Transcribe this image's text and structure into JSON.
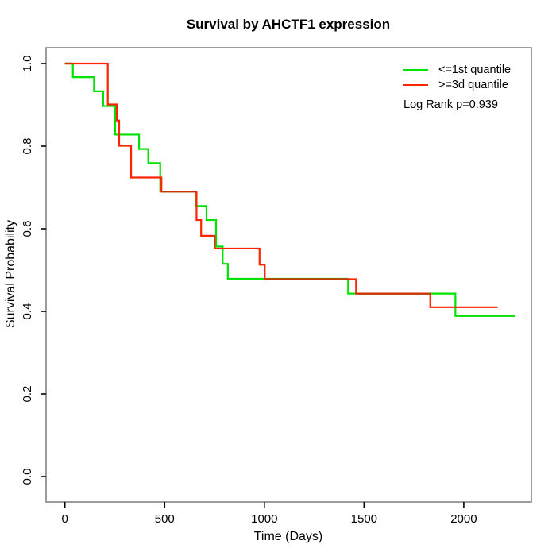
{
  "title": "Survival by AHCTF1 expression",
  "legend": {
    "items": [
      {
        "label": "<=1st quantile",
        "color": "#00e300"
      },
      {
        "label": ">=3d quantile",
        "color": "#ff2400"
      }
    ],
    "note": "Log Rank p=0.939"
  },
  "chart_data": {
    "type": "line",
    "subtype": "kaplan-meier-step",
    "title": "Survival by AHCTF1 expression",
    "xlabel": "Time (Days)",
    "ylabel": "Survival Probability",
    "xlim": [
      0,
      2256
    ],
    "ylim": [
      0.0,
      1.0
    ],
    "grid": false,
    "legend_position": "top-right-inside",
    "annotation": "Log Rank p=0.939",
    "x_ticks": [
      0,
      500,
      1000,
      1500,
      2000
    ],
    "x_tick_labels": [
      "0",
      "500",
      "1000",
      "1500",
      "2000"
    ],
    "y_ticks": [
      0.0,
      0.2,
      0.4,
      0.6,
      0.8,
      1.0
    ],
    "y_tick_labels": [
      "0.0",
      "0.2",
      "0.4",
      "0.6",
      "0.8",
      "1.0"
    ],
    "series": [
      {
        "name": "<=1st quantile",
        "color": "#00e300",
        "end_time": 2256,
        "steps": [
          [
            0,
            1.0
          ],
          [
            40,
            0.967
          ],
          [
            146,
            0.933
          ],
          [
            192,
            0.897
          ],
          [
            252,
            0.828
          ],
          [
            372,
            0.793
          ],
          [
            418,
            0.759
          ],
          [
            478,
            0.69
          ],
          [
            657,
            0.655
          ],
          [
            710,
            0.621
          ],
          [
            758,
            0.557
          ],
          [
            791,
            0.515
          ],
          [
            817,
            0.479
          ],
          [
            1420,
            0.443
          ],
          [
            1958,
            0.389
          ]
        ]
      },
      {
        "name": ">=3d quantile",
        "color": "#ff2400",
        "end_time": 2170,
        "steps": [
          [
            0,
            1.0
          ],
          [
            215,
            0.901
          ],
          [
            260,
            0.862
          ],
          [
            272,
            0.801
          ],
          [
            332,
            0.724
          ],
          [
            484,
            0.69
          ],
          [
            660,
            0.621
          ],
          [
            683,
            0.583
          ],
          [
            751,
            0.552
          ],
          [
            976,
            0.513
          ],
          [
            1002,
            0.478
          ],
          [
            1460,
            0.443
          ],
          [
            1832,
            0.41
          ]
        ]
      }
    ],
    "overlap_segments": [
      {
        "p": 1.0,
        "t0": 0,
        "t1": 40
      },
      {
        "p": 0.69,
        "t0": 484,
        "t1": 657
      },
      {
        "p": 0.478,
        "t0": 1002,
        "t1": 1420
      },
      {
        "p": 0.443,
        "t0": 1460,
        "t1": 1832
      }
    ],
    "overlap_color": "#cc3300",
    "box_color": "#848484",
    "tick_color": "#000000"
  }
}
